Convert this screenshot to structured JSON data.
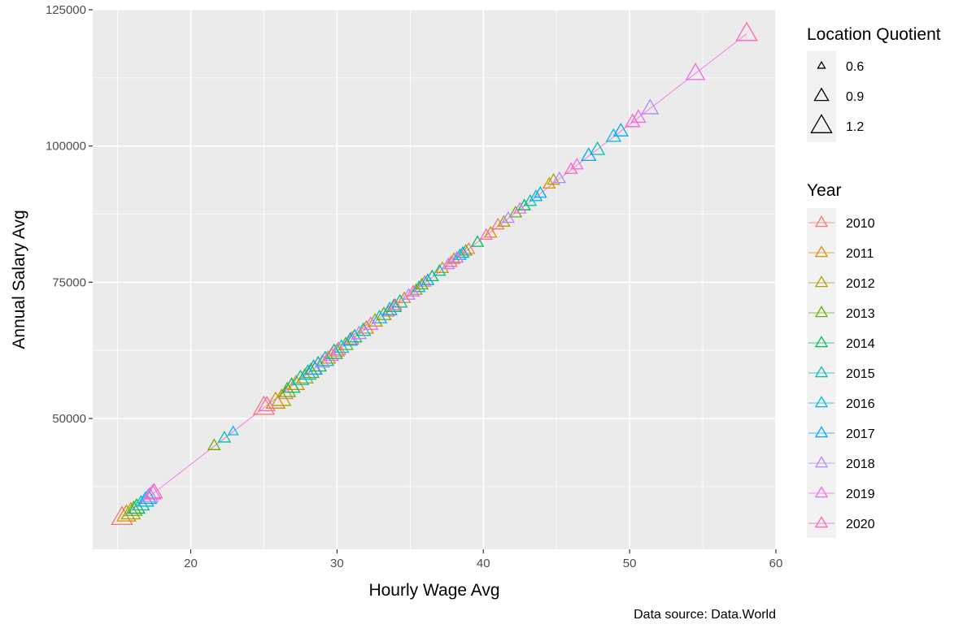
{
  "chart_data": {
    "type": "scatter",
    "xlabel": "Hourly Wage Avg",
    "ylabel": "Annual Salary Avg",
    "caption": "Data source: Data.World",
    "xlim": [
      13.3,
      60
    ],
    "ylim": [
      26000,
      125000
    ],
    "x_ticks": [
      20,
      30,
      40,
      50,
      60
    ],
    "y_ticks": [
      50000,
      75000,
      100000,
      125000
    ],
    "x_tick_labels": [
      "20",
      "30",
      "40",
      "50",
      "60"
    ],
    "y_tick_labels": [
      "50000",
      "75000",
      "100000",
      "125000"
    ],
    "grid": true,
    "marker": "open-triangle",
    "trend_line": {
      "from": [
        15.3,
        31800
      ],
      "to": [
        58,
        120600
      ],
      "color": "#F564E3"
    },
    "size_legend": {
      "title": "Location Quotient",
      "entries": [
        {
          "label": "0.6",
          "value": 0.6
        },
        {
          "label": "0.9",
          "value": 0.9
        },
        {
          "label": "1.2",
          "value": 1.2
        }
      ]
    },
    "color_legend": {
      "title": "Year",
      "entries": [
        {
          "label": "2010",
          "color": "#F8766D"
        },
        {
          "label": "2011",
          "color": "#DB8E00"
        },
        {
          "label": "2012",
          "color": "#AEA200"
        },
        {
          "label": "2013",
          "color": "#64B200"
        },
        {
          "label": "2014",
          "color": "#00BD5C"
        },
        {
          "label": "2015",
          "color": "#00C1A7"
        },
        {
          "label": "2016",
          "color": "#00BADE"
        },
        {
          "label": "2017",
          "color": "#00A6FF"
        },
        {
          "label": "2018",
          "color": "#B385FF"
        },
        {
          "label": "2019",
          "color": "#EF67EB"
        },
        {
          "label": "2020",
          "color": "#FF63B6"
        }
      ]
    },
    "series": [
      {
        "year": "2010",
        "points": [
          {
            "x": 15.3,
            "y": 31800,
            "lq": 1.2
          },
          {
            "x": 25.0,
            "y": 52000,
            "lq": 1.2
          },
          {
            "x": 26.5,
            "y": 54500,
            "lq": 0.9
          },
          {
            "x": 28.5,
            "y": 59000,
            "lq": 0.9
          },
          {
            "x": 31.0,
            "y": 64500,
            "lq": 0.9
          },
          {
            "x": 33.5,
            "y": 69500,
            "lq": 0.8
          },
          {
            "x": 36.0,
            "y": 75000,
            "lq": 0.8
          },
          {
            "x": 39.0,
            "y": 81000,
            "lq": 0.8
          },
          {
            "x": 41.0,
            "y": 85500,
            "lq": 0.8
          }
        ]
      },
      {
        "year": "2011",
        "points": [
          {
            "x": 15.6,
            "y": 32300,
            "lq": 1.1
          },
          {
            "x": 25.8,
            "y": 53000,
            "lq": 1.1
          },
          {
            "x": 27.2,
            "y": 56300,
            "lq": 1.0
          },
          {
            "x": 29.4,
            "y": 61000,
            "lq": 0.9
          },
          {
            "x": 32.0,
            "y": 66500,
            "lq": 0.9
          },
          {
            "x": 34.6,
            "y": 72000,
            "lq": 0.8
          },
          {
            "x": 37.2,
            "y": 77500,
            "lq": 0.8
          },
          {
            "x": 40.5,
            "y": 84000,
            "lq": 0.8
          },
          {
            "x": 44.5,
            "y": 93000,
            "lq": 0.8
          }
        ]
      },
      {
        "year": "2012",
        "points": [
          {
            "x": 15.9,
            "y": 32700,
            "lq": 1.1
          },
          {
            "x": 26.2,
            "y": 53500,
            "lq": 1.1
          },
          {
            "x": 27.8,
            "y": 57500,
            "lq": 1.0
          },
          {
            "x": 30.0,
            "y": 62300,
            "lq": 0.9
          },
          {
            "x": 32.6,
            "y": 67800,
            "lq": 0.9
          },
          {
            "x": 35.4,
            "y": 73500,
            "lq": 0.8
          },
          {
            "x": 38.0,
            "y": 79200,
            "lq": 0.8
          },
          {
            "x": 41.4,
            "y": 86000,
            "lq": 0.8
          },
          {
            "x": 44.8,
            "y": 93700,
            "lq": 0.8
          }
        ]
      },
      {
        "year": "2013",
        "points": [
          {
            "x": 16.1,
            "y": 33200,
            "lq": 1.0
          },
          {
            "x": 21.6,
            "y": 45000,
            "lq": 0.8
          },
          {
            "x": 26.6,
            "y": 55000,
            "lq": 1.0
          },
          {
            "x": 28.2,
            "y": 58500,
            "lq": 1.0
          },
          {
            "x": 30.6,
            "y": 63500,
            "lq": 0.9
          },
          {
            "x": 33.2,
            "y": 69000,
            "lq": 0.9
          },
          {
            "x": 35.8,
            "y": 74500,
            "lq": 0.8
          },
          {
            "x": 38.8,
            "y": 80700,
            "lq": 0.8
          },
          {
            "x": 42.2,
            "y": 87700,
            "lq": 0.8
          }
        ]
      },
      {
        "year": "2014",
        "points": [
          {
            "x": 16.3,
            "y": 33600,
            "lq": 1.0
          },
          {
            "x": 26.9,
            "y": 55800,
            "lq": 1.0
          },
          {
            "x": 28.7,
            "y": 59700,
            "lq": 1.0
          },
          {
            "x": 29.8,
            "y": 62000,
            "lq": 1.0
          },
          {
            "x": 31.2,
            "y": 64900,
            "lq": 0.9
          },
          {
            "x": 33.9,
            "y": 70500,
            "lq": 0.9
          },
          {
            "x": 36.5,
            "y": 76000,
            "lq": 0.8
          },
          {
            "x": 39.6,
            "y": 82300,
            "lq": 0.8
          },
          {
            "x": 42.8,
            "y": 89000,
            "lq": 0.8
          }
        ]
      },
      {
        "year": "2015",
        "points": [
          {
            "x": 16.6,
            "y": 34200,
            "lq": 1.0
          },
          {
            "x": 22.3,
            "y": 46400,
            "lq": 0.8
          },
          {
            "x": 27.5,
            "y": 57200,
            "lq": 1.0
          },
          {
            "x": 29.2,
            "y": 60700,
            "lq": 1.0
          },
          {
            "x": 31.8,
            "y": 66100,
            "lq": 0.9
          },
          {
            "x": 34.3,
            "y": 71300,
            "lq": 0.9
          },
          {
            "x": 37.0,
            "y": 77000,
            "lq": 0.8
          },
          {
            "x": 43.2,
            "y": 89800,
            "lq": 0.8
          },
          {
            "x": 47.8,
            "y": 99300,
            "lq": 0.9
          }
        ]
      },
      {
        "year": "2016",
        "points": [
          {
            "x": 16.9,
            "y": 34900,
            "lq": 1.0
          },
          {
            "x": 22.9,
            "y": 47600,
            "lq": 0.7
          },
          {
            "x": 28.0,
            "y": 58200,
            "lq": 1.0
          },
          {
            "x": 30.3,
            "y": 63000,
            "lq": 0.9
          },
          {
            "x": 32.9,
            "y": 68400,
            "lq": 0.9
          },
          {
            "x": 35.6,
            "y": 74000,
            "lq": 0.8
          },
          {
            "x": 38.4,
            "y": 79900,
            "lq": 0.8
          },
          {
            "x": 43.6,
            "y": 90700,
            "lq": 0.8
          },
          {
            "x": 48.9,
            "y": 101700,
            "lq": 0.9
          }
        ]
      },
      {
        "year": "2017",
        "points": [
          {
            "x": 17.1,
            "y": 35400,
            "lq": 1.0
          },
          {
            "x": 28.4,
            "y": 59100,
            "lq": 1.0
          },
          {
            "x": 30.9,
            "y": 64300,
            "lq": 0.9
          },
          {
            "x": 33.6,
            "y": 69900,
            "lq": 0.9
          },
          {
            "x": 36.2,
            "y": 75300,
            "lq": 0.8
          },
          {
            "x": 38.6,
            "y": 80300,
            "lq": 0.8
          },
          {
            "x": 43.9,
            "y": 91300,
            "lq": 0.8
          },
          {
            "x": 47.2,
            "y": 98200,
            "lq": 0.9
          },
          {
            "x": 49.4,
            "y": 102700,
            "lq": 0.9
          }
        ]
      },
      {
        "year": "2018",
        "points": [
          {
            "x": 17.2,
            "y": 35700,
            "lq": 1.0
          },
          {
            "x": 29.0,
            "y": 60300,
            "lq": 0.9
          },
          {
            "x": 31.5,
            "y": 65500,
            "lq": 0.9
          },
          {
            "x": 34.9,
            "y": 72600,
            "lq": 0.8
          },
          {
            "x": 37.6,
            "y": 78200,
            "lq": 0.8
          },
          {
            "x": 41.7,
            "y": 86700,
            "lq": 0.8
          },
          {
            "x": 45.2,
            "y": 94000,
            "lq": 0.8
          },
          {
            "x": 51.4,
            "y": 106900,
            "lq": 1.0
          }
        ]
      },
      {
        "year": "2019",
        "points": [
          {
            "x": 17.4,
            "y": 36200,
            "lq": 1.0
          },
          {
            "x": 29.6,
            "y": 61500,
            "lq": 0.9
          },
          {
            "x": 32.3,
            "y": 67200,
            "lq": 0.9
          },
          {
            "x": 35.2,
            "y": 73200,
            "lq": 0.8
          },
          {
            "x": 38.2,
            "y": 79400,
            "lq": 0.8
          },
          {
            "x": 42.5,
            "y": 88400,
            "lq": 0.8
          },
          {
            "x": 46.4,
            "y": 96500,
            "lq": 0.8
          },
          {
            "x": 50.6,
            "y": 105200,
            "lq": 0.9
          },
          {
            "x": 54.5,
            "y": 113300,
            "lq": 1.1
          }
        ]
      },
      {
        "year": "2020",
        "points": [
          {
            "x": 17.5,
            "y": 36400,
            "lq": 1.0
          },
          {
            "x": 25.2,
            "y": 52400,
            "lq": 1.0
          },
          {
            "x": 30.1,
            "y": 62600,
            "lq": 0.9
          },
          {
            "x": 34.0,
            "y": 70700,
            "lq": 0.8
          },
          {
            "x": 37.8,
            "y": 78600,
            "lq": 0.8
          },
          {
            "x": 40.2,
            "y": 83600,
            "lq": 0.8
          },
          {
            "x": 46.0,
            "y": 95700,
            "lq": 0.8
          },
          {
            "x": 50.2,
            "y": 104400,
            "lq": 0.9
          },
          {
            "x": 58.0,
            "y": 120600,
            "lq": 1.2
          }
        ]
      }
    ]
  }
}
